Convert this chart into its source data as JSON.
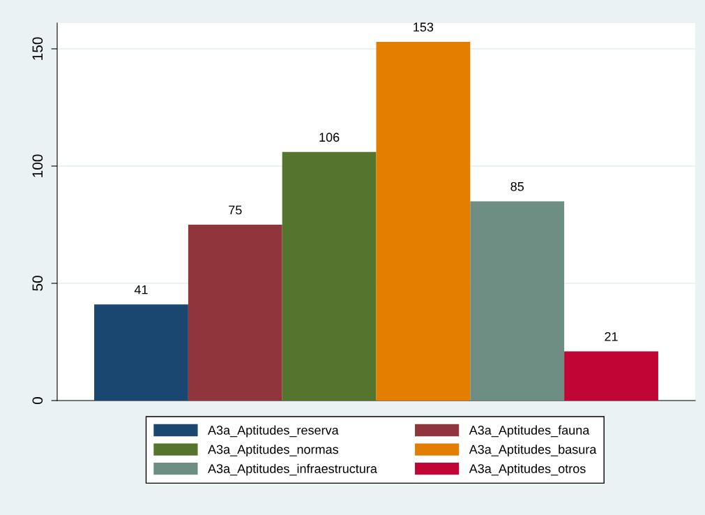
{
  "chart_data": {
    "type": "bar",
    "categories": [
      null
    ],
    "series": [
      {
        "name": "A3a_Aptitudes_reserva",
        "color": "#1a476f",
        "values": [
          41
        ]
      },
      {
        "name": "A3a_Aptitudes_fauna",
        "color": "#90353b",
        "values": [
          75
        ]
      },
      {
        "name": "A3a_Aptitudes_normas",
        "color": "#55752f",
        "values": [
          106
        ]
      },
      {
        "name": "A3a_Aptitudes_basura",
        "color": "#e37e00",
        "values": [
          153
        ]
      },
      {
        "name": "A3a_Aptitudes_infraestructura",
        "color": "#6e8e84",
        "values": [
          85
        ]
      },
      {
        "name": "A3a_Aptitudes_otros",
        "color": "#c10534",
        "values": [
          21
        ]
      }
    ],
    "ylim": [
      0,
      161
    ],
    "yticks": [
      0,
      50,
      100,
      150
    ],
    "grid": "y",
    "legend": "bottom",
    "data_labels": true
  }
}
